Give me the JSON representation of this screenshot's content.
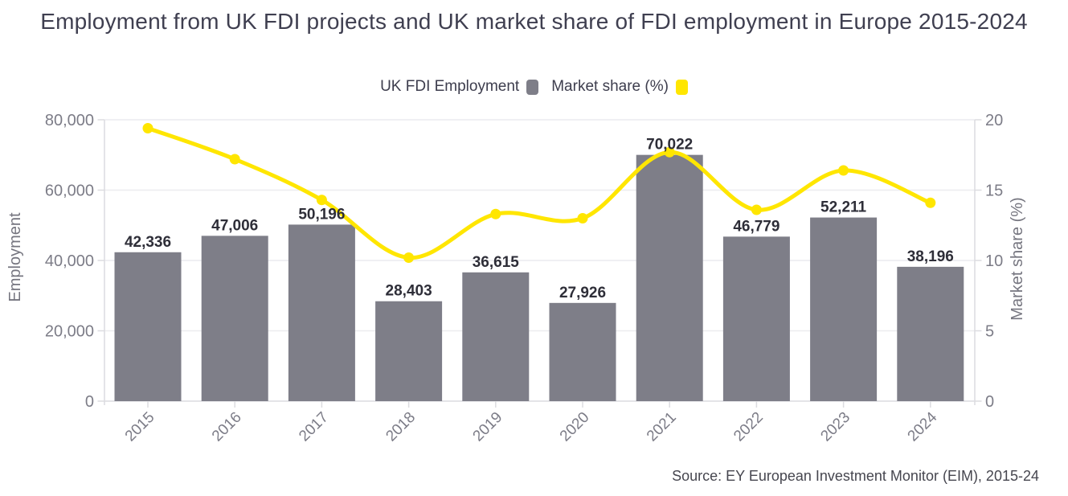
{
  "title": "Employment from UK FDI projects and UK market share of FDI employment in Europe 2015-2024",
  "legend": {
    "items": [
      {
        "label": "UK FDI Employment",
        "swatch_color": "#7e7e88"
      },
      {
        "label": "Market share (%)",
        "swatch_color": "#ffe600"
      }
    ]
  },
  "source": "Source: EY European Investment Monitor (EIM), 2015-24",
  "colors": {
    "bar": "#7e7e88",
    "line": "#ffe600",
    "data_label": "#2e2e38",
    "tick_label": "#7c7c87",
    "axis_title": "#75757f",
    "gridline": "#ececef",
    "axis_line": "#dcdce0"
  },
  "chart_data": {
    "type": "bar+line combo",
    "categories": [
      "2015",
      "2016",
      "2017",
      "2018",
      "2019",
      "2020",
      "2021",
      "2022",
      "2023",
      "2024"
    ],
    "series": [
      {
        "name": "UK FDI Employment",
        "type": "bar",
        "axis": "left",
        "color": "#7e7e88",
        "values": [
          42336,
          47006,
          50196,
          28403,
          36615,
          27926,
          70022,
          46779,
          52211,
          38196
        ],
        "data_labels": [
          "42,336",
          "47,006",
          "50,196",
          "28,403",
          "36,615",
          "27,926",
          "70,022",
          "46,779",
          "52,211",
          "38,196"
        ]
      },
      {
        "name": "Market share (%)",
        "type": "line",
        "axis": "right",
        "color": "#ffe600",
        "values": [
          19.4,
          17.2,
          14.3,
          10.2,
          13.3,
          13.0,
          17.7,
          13.6,
          16.4,
          14.1
        ]
      }
    ],
    "left_axis": {
      "label": "Employment",
      "min": 0,
      "max": 80000,
      "tick_labels": [
        "0",
        "20,000",
        "40,000",
        "60,000",
        "80,000"
      ]
    },
    "right_axis": {
      "label": "Market share (%)",
      "min": 0,
      "max": 20,
      "tick_labels": [
        "0",
        "5",
        "10",
        "15",
        "20"
      ]
    },
    "grid": "horizontal",
    "legend_position": "top-center"
  }
}
